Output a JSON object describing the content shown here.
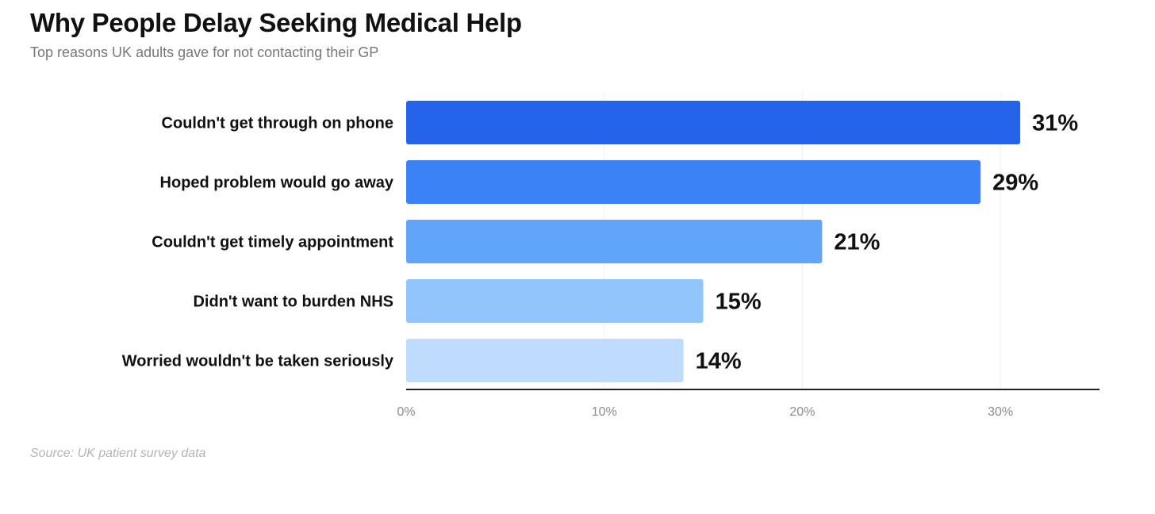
{
  "header": {
    "title": "Why People Delay Seeking Medical Help",
    "subtitle": "Top reasons UK adults gave for not contacting their GP"
  },
  "footer": {
    "source": "Source: UK patient survey data"
  },
  "chart_data": {
    "type": "bar",
    "orientation": "horizontal",
    "title": "Why People Delay Seeking Medical Help",
    "subtitle": "Top reasons UK adults gave for not contacting their GP",
    "categories": [
      "Couldn't get through on phone",
      "Hoped problem would go away",
      "Couldn't get timely appointment",
      "Didn't want to burden NHS",
      "Worried wouldn't be taken seriously"
    ],
    "values": [
      31,
      29,
      21,
      15,
      14
    ],
    "value_labels": [
      "31%",
      "29%",
      "21%",
      "15%",
      "14%"
    ],
    "bar_colors": [
      "#2563eb",
      "#3b82f6",
      "#60a5fa",
      "#93c5fd",
      "#bfdbfe"
    ],
    "xlim": [
      0,
      35
    ],
    "x_ticks": [
      0,
      10,
      20,
      30
    ],
    "x_tick_labels": [
      "0%",
      "10%",
      "20%",
      "30%"
    ],
    "xlabel": "",
    "ylabel": "",
    "grid": true,
    "legend": "none",
    "source": "Source: UK patient survey data"
  }
}
